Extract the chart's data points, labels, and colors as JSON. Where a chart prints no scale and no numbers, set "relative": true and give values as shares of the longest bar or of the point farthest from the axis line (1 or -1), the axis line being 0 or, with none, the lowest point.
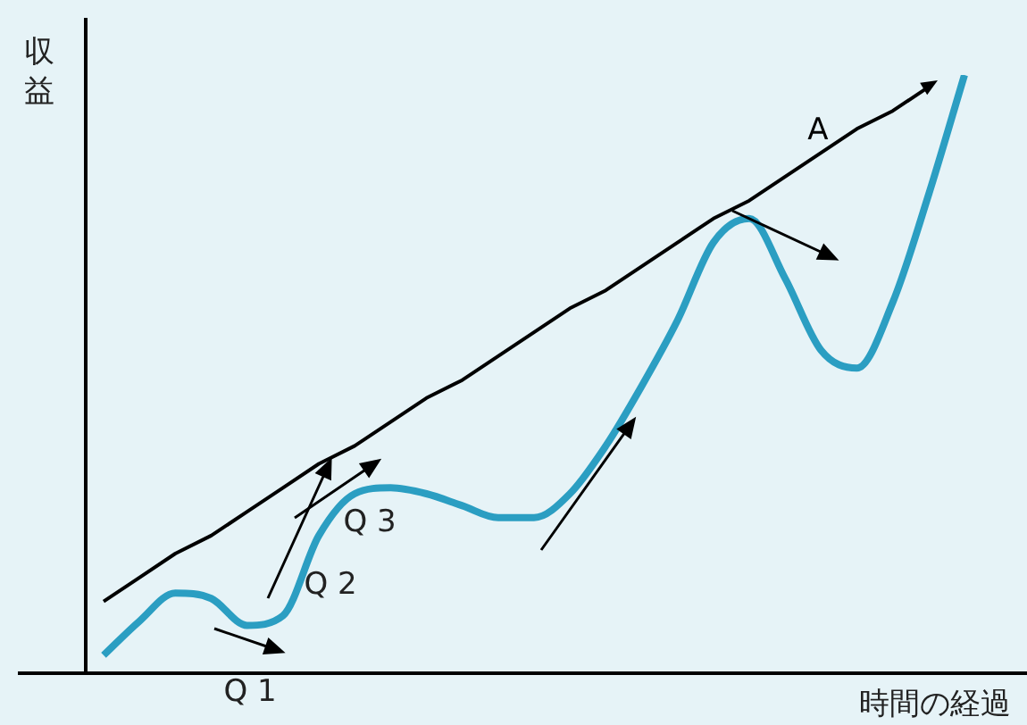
{
  "chart_data": {
    "type": "line",
    "relative": true,
    "xlabel": "時間の経過",
    "ylabel": "収益",
    "categories": [
      null,
      null,
      null,
      null,
      null,
      null,
      null,
      null,
      null,
      null,
      null,
      null,
      null,
      null,
      null,
      null,
      null,
      null,
      null,
      null,
      null,
      null,
      null,
      null,
      null
    ],
    "series": [
      {
        "color": "#2b9ec2",
        "values": [
          0.03,
          0.087,
          0.134,
          0.125,
          0.08,
          0.096,
          0.23,
          0.3,
          0.31,
          0.3,
          0.28,
          0.26,
          0.26,
          0.3,
          0.38,
          0.48,
          0.59,
          0.72,
          0.76,
          0.66,
          0.54,
          0.51,
          0.62,
          0.8,
          1.0
        ]
      },
      {
        "name": "A",
        "color": "#000000",
        "values": [
          0.12,
          0.16,
          0.2,
          0.23,
          0.27,
          0.31,
          0.35,
          0.38,
          0.42,
          0.46,
          0.49,
          0.53,
          0.57,
          0.61,
          0.64,
          0.68,
          0.72,
          0.76,
          0.79,
          0.83,
          0.87,
          0.91,
          0.94,
          0.98,
          null
        ]
      }
    ],
    "annotations": [
      "Q 1",
      "Q 2",
      "Q 3"
    ],
    "legend": false,
    "marker": "none"
  }
}
